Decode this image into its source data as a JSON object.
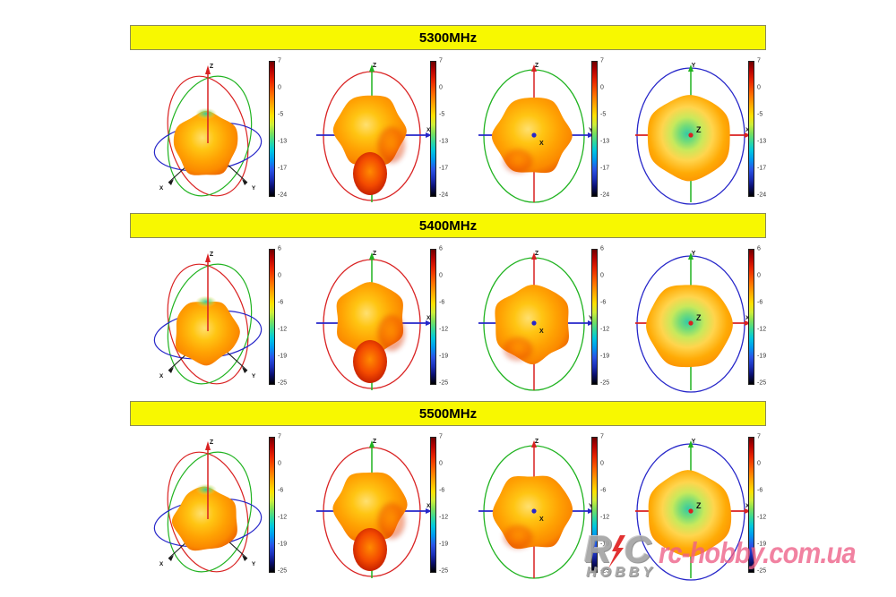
{
  "page": {
    "background": "#ffffff"
  },
  "rows": [
    {
      "title": "5300MHz",
      "colorbar_ticks": [
        "7",
        "0",
        "-5",
        "-13",
        "-17",
        "-24"
      ]
    },
    {
      "title": "5400MHz",
      "colorbar_ticks": [
        "6",
        "0",
        "-6",
        "-12",
        "-19",
        "-25"
      ]
    },
    {
      "title": "5500MHz",
      "colorbar_ticks": [
        "7",
        "0",
        "-6",
        "-12",
        "-19",
        "-25"
      ]
    }
  ],
  "plot_views": [
    {
      "name": "3d-perspective",
      "axis_labels": {
        "top": "Z",
        "bottom_left": "X",
        "bottom_right": "Y"
      }
    },
    {
      "name": "side-view-xz",
      "axis_labels": {
        "top": "Z",
        "right": "X"
      }
    },
    {
      "name": "front-view-yz",
      "axis_labels": {
        "top": "Z",
        "right": "Y",
        "center": "X"
      }
    },
    {
      "name": "top-view-xy",
      "axis_labels": {
        "top": "Y",
        "right": "X",
        "center": "Z"
      }
    }
  ],
  "banner_style": {
    "background": "#f8f800",
    "border": "#8a8a5a",
    "text_color": "#000000"
  },
  "axis_colors": {
    "red": "#d92121",
    "green": "#21b321",
    "blue": "#2626c9",
    "black": "#1a1a1a"
  },
  "colorbar": {
    "top_color": "#6f0000",
    "bottom_color": "#000000"
  },
  "watermark": {
    "letter_r": "R",
    "letter_c": "C",
    "word": "HOBBY",
    "site": "rc-hobby.com.ua",
    "pink": "#ee5f87",
    "gray": "#a4a4a4",
    "bolt_red": "#e02020"
  },
  "chart_data": {
    "type": "heatmap",
    "description": "3D antenna radiation patterns (gain in dB) shown at three frequencies, four views each (3D perspective, side, front, top), with a jet colorbar per view",
    "panels": [
      {
        "title": "5300MHz",
        "colorbar_range_db": [
          7,
          -24
        ],
        "colorbar_ticks": [
          7,
          0,
          -5,
          -13,
          -17,
          -24
        ]
      },
      {
        "title": "5400MHz",
        "colorbar_range_db": [
          6,
          -25
        ],
        "colorbar_ticks": [
          6,
          0,
          -6,
          -12,
          -19,
          -25
        ]
      },
      {
        "title": "5500MHz",
        "colorbar_range_db": [
          7,
          -25
        ],
        "colorbar_ticks": [
          7,
          0,
          -6,
          -12,
          -19,
          -25
        ]
      }
    ],
    "views_per_panel": [
      "3d-perspective",
      "side-view-xz",
      "front-view-yz",
      "top-view-xy"
    ],
    "legend_position": "right-of-each-view"
  }
}
